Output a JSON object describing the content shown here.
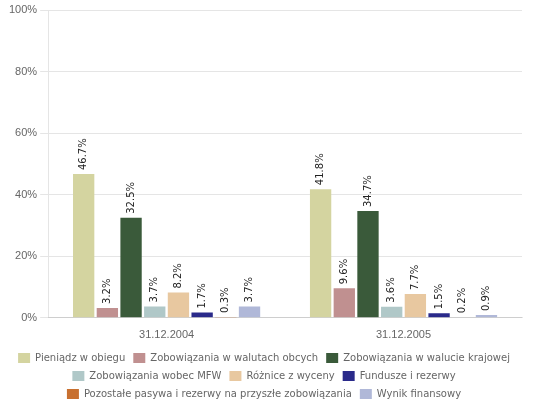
{
  "chart_data": {
    "type": "bar",
    "categories": [
      "31.12.2004",
      "31.12.2005"
    ],
    "series": [
      {
        "name": "Pieniądz w obiegu",
        "color": "#d4d4a0",
        "values": [
          46.7,
          41.8
        ],
        "value_labels": [
          "46.7%",
          "41.8%"
        ]
      },
      {
        "name": "Zobowiązania w walutach obcych",
        "color": "#c09090",
        "values": [
          3.2,
          9.6
        ],
        "value_labels": [
          "3.2%",
          "9.6%"
        ]
      },
      {
        "name": "Zobowiązania w walucie krajowej",
        "color": "#3a5a3a",
        "values": [
          32.5,
          34.7
        ],
        "value_labels": [
          "32.5%",
          "34.7%"
        ]
      },
      {
        "name": "Zobowiązania wobec MFW",
        "color": "#b0c8c8",
        "values": [
          3.7,
          3.6
        ],
        "value_labels": [
          "3.7%",
          "3.6%"
        ]
      },
      {
        "name": "Różnice z wyceny",
        "color": "#e8c8a0",
        "values": [
          8.2,
          7.7
        ],
        "value_labels": [
          "8.2%",
          "7.7%"
        ]
      },
      {
        "name": "Fundusze i rezerwy",
        "color": "#2a2a8a",
        "values": [
          1.7,
          1.5
        ],
        "value_labels": [
          "1.7%",
          "1.5%"
        ]
      },
      {
        "name": "Pozostałe pasywa i rezerwy na przyszłe zobowiązania",
        "color": "#c87030",
        "values": [
          0.3,
          0.2
        ],
        "value_labels": [
          "0.3%",
          "0.2%"
        ]
      },
      {
        "name": "Wynik finansowy",
        "color": "#b0b8d8",
        "values": [
          3.7,
          0.9
        ],
        "value_labels": [
          "3.7%",
          "0.9%"
        ]
      }
    ],
    "ylim": [
      0,
      100
    ],
    "yticks": [
      {
        "value": 0,
        "label": "0%"
      },
      {
        "value": 20,
        "label": "20%"
      },
      {
        "value": 40,
        "label": "40%"
      },
      {
        "value": 60,
        "label": "60%"
      },
      {
        "value": 80,
        "label": "80%"
      },
      {
        "value": 100,
        "label": "100%"
      }
    ],
    "grid": true,
    "legend": "bottom",
    "data_labels": true
  }
}
